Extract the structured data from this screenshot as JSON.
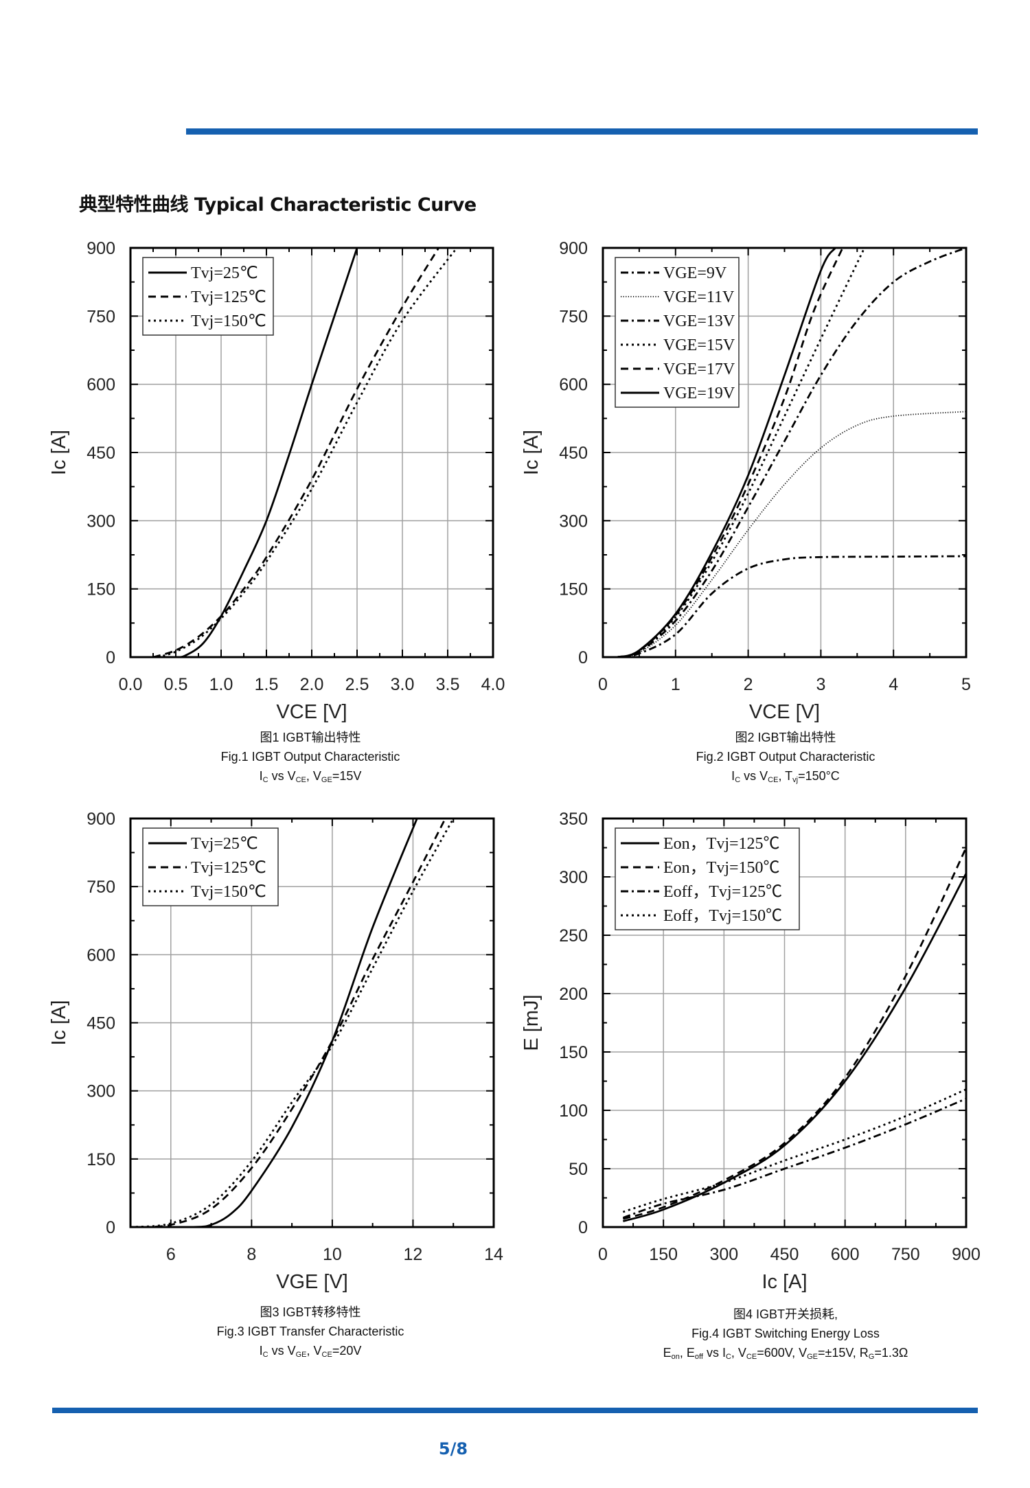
{
  "heading": "典型特性曲线 Typical Characteristic Curve",
  "page_number": "5/8",
  "colors": {
    "accent": "#1560b0",
    "lines": "#000000",
    "grid": "#a0a0a0"
  },
  "captions": [
    {
      "line1": "图1 IGBT输出特性",
      "line2": "Fig.1 IGBT Output Characteristic",
      "line3": [
        {
          "t": "I"
        },
        {
          "t": "C",
          "sub": true
        },
        {
          "t": " vs V"
        },
        {
          "t": "CE",
          "sub": true
        },
        {
          "t": ", V"
        },
        {
          "t": "GE",
          "sub": true
        },
        {
          "t": "=15V"
        }
      ]
    },
    {
      "line1": "图2 IGBT输出特性",
      "line2": "Fig.2 IGBT Output Characteristic",
      "line3": [
        {
          "t": "I"
        },
        {
          "t": "C",
          "sub": true
        },
        {
          "t": " vs V"
        },
        {
          "t": "CE",
          "sub": true
        },
        {
          "t": ",  T"
        },
        {
          "t": "vj",
          "sub": true
        },
        {
          "t": "=150°C"
        }
      ]
    },
    {
      "line1": "图3 IGBT转移特性",
      "line2": "Fig.3 IGBT Transfer Characteristic",
      "line3": [
        {
          "t": "I"
        },
        {
          "t": "C",
          "sub": true
        },
        {
          "t": " vs V"
        },
        {
          "t": "GE",
          "sub": true
        },
        {
          "t": ", V"
        },
        {
          "t": "CE",
          "sub": true
        },
        {
          "t": "=20V"
        }
      ]
    },
    {
      "line1": "图4 IGBT开关损耗,",
      "line2": "Fig.4 IGBT Switching Energy Loss",
      "line3": [
        {
          "t": "E"
        },
        {
          "t": "on",
          "sub": true
        },
        {
          "t": ", E"
        },
        {
          "t": "off",
          "sub": true
        },
        {
          "t": " vs I"
        },
        {
          "t": "C",
          "sub": true
        },
        {
          "t": ", V"
        },
        {
          "t": "CE",
          "sub": true
        },
        {
          "t": "=600V, V"
        },
        {
          "t": "GE",
          "sub": true
        },
        {
          "t": "=±15V, R"
        },
        {
          "t": "G",
          "sub": true
        },
        {
          "t": "=1.3Ω"
        }
      ]
    }
  ],
  "chart_data": [
    {
      "type": "line",
      "xlabel": "VCE [V]",
      "ylabel": "Ic [A]",
      "xlim": [
        0,
        4
      ],
      "ylim": [
        0,
        900
      ],
      "xticks": [
        0,
        0.5,
        1,
        1.5,
        2,
        2.5,
        3,
        3.5,
        4
      ],
      "xtick_labels": [
        "0.0",
        "0.5",
        "1.0",
        "1.5",
        "2.0",
        "2.5",
        "3.0",
        "3.5",
        "4.0"
      ],
      "yticks": [
        0,
        150,
        300,
        450,
        600,
        750,
        900
      ],
      "grid": true,
      "legend": "top-left",
      "series": [
        {
          "name": "Tvj=25℃",
          "style": "solid",
          "points": [
            [
              0.5,
              0
            ],
            [
              0.6,
              3
            ],
            [
              0.8,
              30
            ],
            [
              1.0,
              90
            ],
            [
              1.25,
              190
            ],
            [
              1.5,
              300
            ],
            [
              1.75,
              445
            ],
            [
              2.0,
              600
            ],
            [
              2.25,
              750
            ],
            [
              2.5,
              900
            ]
          ]
        },
        {
          "name": "Tvj=125℃",
          "style": "dash",
          "points": [
            [
              0.25,
              0
            ],
            [
              0.5,
              15
            ],
            [
              0.75,
              45
            ],
            [
              1.0,
              90
            ],
            [
              1.25,
              150
            ],
            [
              1.5,
              220
            ],
            [
              2.0,
              390
            ],
            [
              2.5,
              590
            ],
            [
              3.0,
              770
            ],
            [
              3.4,
              900
            ]
          ]
        },
        {
          "name": "Tvj=150℃",
          "style": "dot",
          "points": [
            [
              0.3,
              0
            ],
            [
              0.5,
              12
            ],
            [
              0.75,
              40
            ],
            [
              1.0,
              85
            ],
            [
              1.25,
              142
            ],
            [
              1.5,
              210
            ],
            [
              2.0,
              370
            ],
            [
              2.5,
              560
            ],
            [
              3.0,
              740
            ],
            [
              3.6,
              900
            ]
          ]
        }
      ]
    },
    {
      "type": "line",
      "xlabel": "VCE [V]",
      "ylabel": "Ic [A]",
      "xlim": [
        0,
        5
      ],
      "ylim": [
        0,
        900
      ],
      "xticks": [
        0,
        1,
        2,
        3,
        4,
        5
      ],
      "xtick_labels": [
        "0",
        "1",
        "2",
        "3",
        "4",
        "5"
      ],
      "yticks": [
        0,
        150,
        300,
        450,
        600,
        750,
        900
      ],
      "grid": true,
      "legend": "top-left",
      "series": [
        {
          "name": "VGE=9V",
          "style": "dashdot",
          "points": [
            [
              0.2,
              0
            ],
            [
              0.5,
              8
            ],
            [
              1.0,
              50
            ],
            [
              1.5,
              140
            ],
            [
              2.0,
              195
            ],
            [
              2.5,
              215
            ],
            [
              3.0,
              220
            ],
            [
              4.0,
              221
            ],
            [
              5.0,
              222
            ]
          ]
        },
        {
          "name": "VGE=11V",
          "style": "finedot",
          "points": [
            [
              0.2,
              0
            ],
            [
              0.5,
              10
            ],
            [
              1.0,
              70
            ],
            [
              1.5,
              170
            ],
            [
              2.0,
              280
            ],
            [
              2.5,
              380
            ],
            [
              3.0,
              460
            ],
            [
              3.5,
              510
            ],
            [
              4.0,
              530
            ],
            [
              5.0,
              540
            ]
          ]
        },
        {
          "name": "VGE=13V",
          "style": "dashdot",
          "points": [
            [
              0.2,
              0
            ],
            [
              0.5,
              12
            ],
            [
              1.0,
              80
            ],
            [
              1.5,
              190
            ],
            [
              2.0,
              330
            ],
            [
              2.5,
              475
            ],
            [
              3.0,
              620
            ],
            [
              3.5,
              740
            ],
            [
              4.0,
              825
            ],
            [
              4.5,
              870
            ],
            [
              5.0,
              900
            ]
          ]
        },
        {
          "name": "VGE=15V",
          "style": "dot",
          "points": [
            [
              0.2,
              0
            ],
            [
              0.5,
              13
            ],
            [
              1.0,
              88
            ],
            [
              1.5,
              210
            ],
            [
              2.0,
              360
            ],
            [
              2.5,
              530
            ],
            [
              3.0,
              700
            ],
            [
              3.6,
              900
            ]
          ]
        },
        {
          "name": "VGE=17V",
          "style": "dash",
          "points": [
            [
              0.2,
              0
            ],
            [
              0.5,
              14
            ],
            [
              1.0,
              92
            ],
            [
              1.5,
              220
            ],
            [
              2.0,
              380
            ],
            [
              2.5,
              570
            ],
            [
              2.9,
              760
            ],
            [
              3.3,
              900
            ]
          ]
        },
        {
          "name": "VGE=19V",
          "style": "solid",
          "points": [
            [
              0.2,
              0
            ],
            [
              0.5,
              15
            ],
            [
              1.0,
              95
            ],
            [
              1.5,
              230
            ],
            [
              2.0,
              400
            ],
            [
              2.5,
              620
            ],
            [
              3.0,
              850
            ],
            [
              3.2,
              900
            ]
          ]
        }
      ]
    },
    {
      "type": "line",
      "xlabel": "VGE [V]",
      "ylabel": "Ic [A]",
      "xlim": [
        5,
        14
      ],
      "ylim": [
        0,
        900
      ],
      "xticks": [
        6,
        8,
        10,
        12,
        14
      ],
      "xtick_labels": [
        "6",
        "8",
        "10",
        "12",
        "14"
      ],
      "yticks": [
        0,
        150,
        300,
        450,
        600,
        750,
        900
      ],
      "grid": true,
      "legend": "top-left",
      "series": [
        {
          "name": "Tvj=25℃",
          "style": "solid",
          "points": [
            [
              5,
              0
            ],
            [
              6.5,
              0
            ],
            [
              7,
              5
            ],
            [
              7.5,
              30
            ],
            [
              8,
              80
            ],
            [
              9,
              220
            ],
            [
              10,
              410
            ],
            [
              11,
              660
            ],
            [
              12.1,
              900
            ]
          ]
        },
        {
          "name": "Tvj=125℃",
          "style": "dash",
          "points": [
            [
              5,
              0
            ],
            [
              6,
              5
            ],
            [
              7,
              40
            ],
            [
              8,
              130
            ],
            [
              9,
              260
            ],
            [
              10,
              410
            ],
            [
              11,
              590
            ],
            [
              12,
              760
            ],
            [
              12.8,
              900
            ]
          ]
        },
        {
          "name": "Tvj=150℃",
          "style": "dot",
          "points": [
            [
              5,
              0
            ],
            [
              6,
              8
            ],
            [
              7,
              50
            ],
            [
              8,
              145
            ],
            [
              9,
              275
            ],
            [
              10,
              400
            ],
            [
              11,
              570
            ],
            [
              12,
              740
            ],
            [
              13,
              900
            ]
          ]
        }
      ]
    },
    {
      "type": "line",
      "xlabel": "Ic [A]",
      "ylabel": "E [mJ]",
      "xlim": [
        0,
        900
      ],
      "ylim": [
        0,
        350
      ],
      "xticks": [
        0,
        150,
        300,
        450,
        600,
        750,
        900
      ],
      "xtick_labels": [
        "0",
        "150",
        "300",
        "450",
        "600",
        "750",
        "900"
      ],
      "yticks": [
        0,
        50,
        100,
        150,
        200,
        250,
        300,
        350
      ],
      "grid": true,
      "legend": "top-left",
      "series": [
        {
          "name": "Eon，Tvj=125℃",
          "style": "solid",
          "points": [
            [
              50,
              5
            ],
            [
              150,
              15
            ],
            [
              300,
              38
            ],
            [
              450,
              70
            ],
            [
              600,
              125
            ],
            [
              750,
              205
            ],
            [
              900,
              303
            ]
          ]
        },
        {
          "name": "Eon，Tvj=150℃",
          "style": "dash",
          "points": [
            [
              50,
              7
            ],
            [
              150,
              17
            ],
            [
              300,
              40
            ],
            [
              450,
              72
            ],
            [
              600,
              128
            ],
            [
              750,
              215
            ],
            [
              900,
              325
            ]
          ]
        },
        {
          "name": "Eoff，Tvj=125℃",
          "style": "dashdot",
          "points": [
            [
              50,
              8
            ],
            [
              150,
              20
            ],
            [
              300,
              32
            ],
            [
              450,
              50
            ],
            [
              600,
              68
            ],
            [
              750,
              88
            ],
            [
              900,
              110
            ]
          ]
        },
        {
          "name": "Eoff，Tvj=150℃",
          "style": "dot",
          "points": [
            [
              50,
              13
            ],
            [
              150,
              24
            ],
            [
              300,
              38
            ],
            [
              450,
              57
            ],
            [
              600,
              75
            ],
            [
              750,
              95
            ],
            [
              900,
              118
            ]
          ]
        }
      ]
    }
  ]
}
